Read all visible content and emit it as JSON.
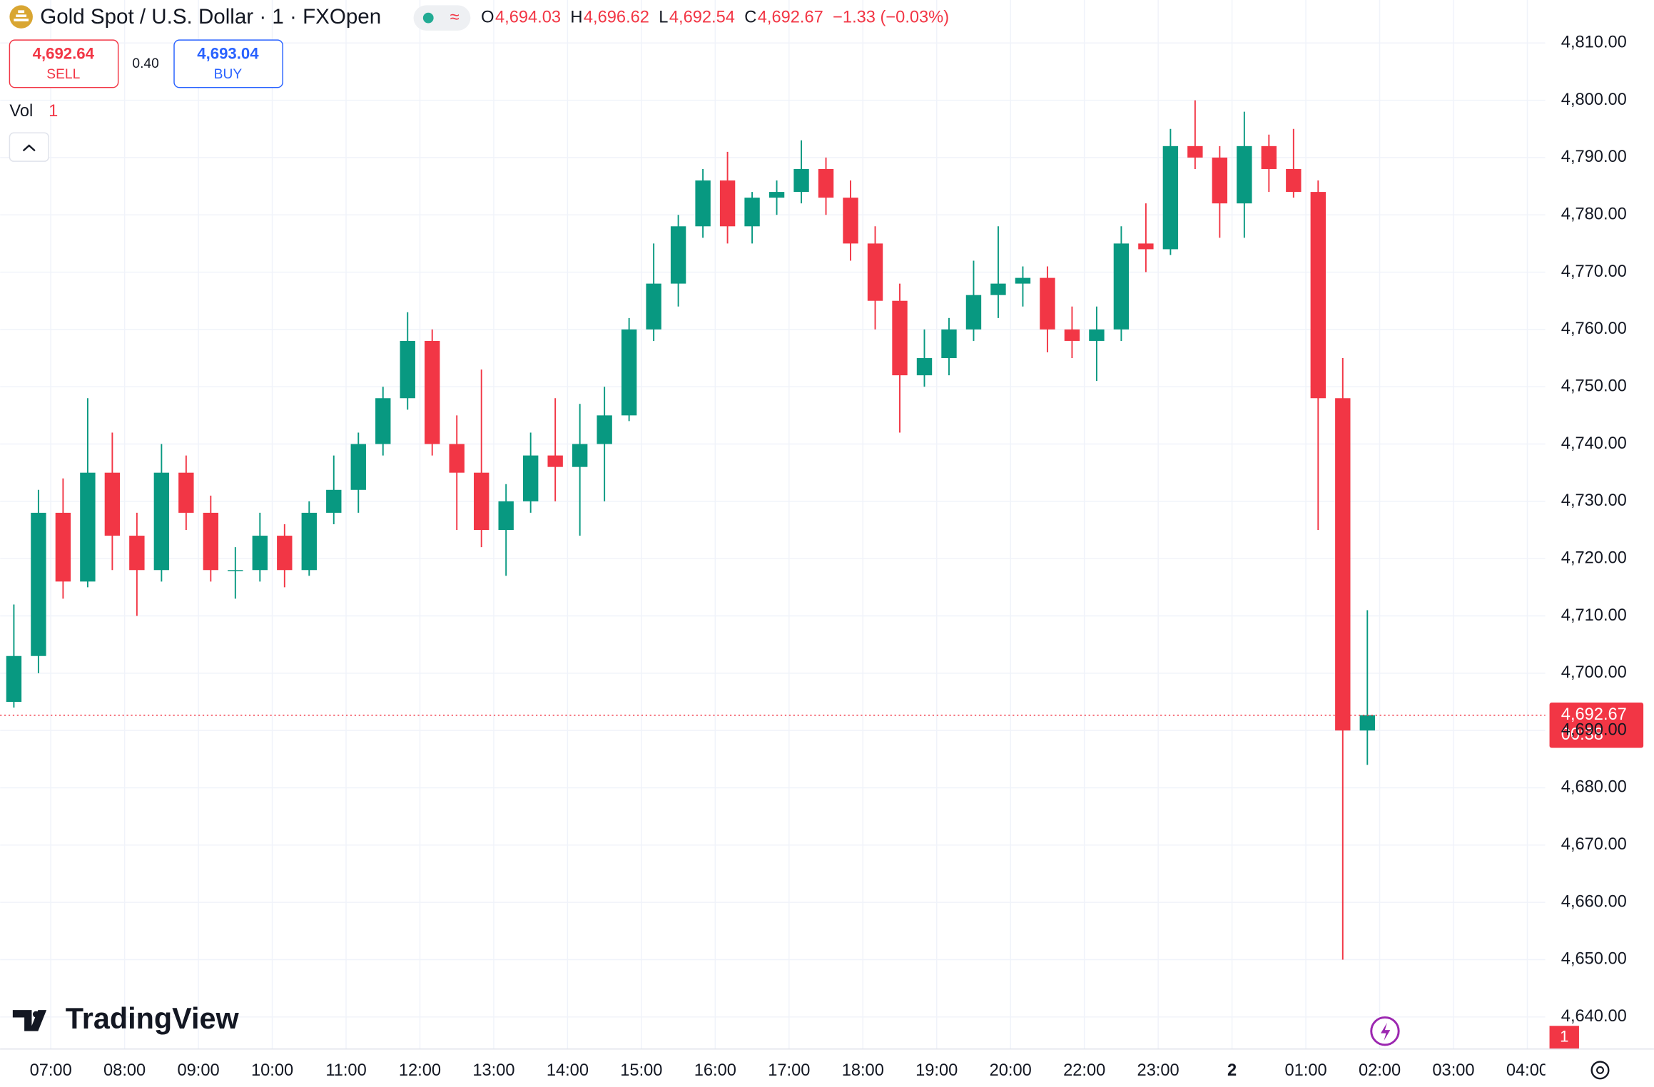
{
  "header": {
    "title": "Gold Spot / U.S. Dollar · 1 · FXOpen",
    "ohlc": [
      {
        "key": "O",
        "value": "4,694.03"
      },
      {
        "key": "H",
        "value": "4,696.62"
      },
      {
        "key": "L",
        "value": "4,692.54"
      },
      {
        "key": "C",
        "value": "4,692.67"
      }
    ],
    "change": "−1.33 (−0.03%)",
    "sell": {
      "price": "4,692.64",
      "label": "SELL"
    },
    "spread": "0.40",
    "buy": {
      "price": "4,693.04",
      "label": "BUY"
    },
    "volume_label": "Vol",
    "volume_value": "1"
  },
  "brand": "TradingView",
  "chart_data": {
    "type": "candlestick",
    "colors": {
      "up": "#089981",
      "down": "#f23645"
    },
    "open": [
      4695,
      4703,
      4728,
      4716,
      4735,
      4724,
      4718,
      4735,
      4728,
      4718,
      4718,
      4724,
      4718,
      4728,
      4732,
      4740,
      4748,
      4758,
      4740,
      4735,
      4725,
      4730,
      4738,
      4736,
      4740,
      4745,
      4760,
      4768,
      4778,
      4786,
      4778,
      4783,
      4784,
      4788,
      4783,
      4775,
      4765,
      4752,
      4755,
      4760,
      4766,
      4768,
      4769,
      4760,
      4758,
      4760,
      4775,
      4774,
      4792,
      4790,
      4782,
      4792,
      4788,
      4784,
      4748,
      4690
    ],
    "high": [
      4712,
      4732,
      4734,
      4748,
      4742,
      4728,
      4740,
      4738,
      4731,
      4722,
      4728,
      4726,
      4730,
      4738,
      4742,
      4750,
      4763,
      4760,
      4745,
      4753,
      4733,
      4742,
      4748,
      4747,
      4750,
      4762,
      4775,
      4780,
      4788,
      4791,
      4784,
      4786,
      4793,
      4790,
      4786,
      4778,
      4768,
      4760,
      4762,
      4772,
      4778,
      4771,
      4771,
      4764,
      4764,
      4778,
      4782,
      4795,
      4800,
      4792,
      4798,
      4794,
      4795,
      4786,
      4755,
      4711
    ],
    "low": [
      4694,
      4700,
      4713,
      4715,
      4718,
      4710,
      4716,
      4725,
      4716,
      4713,
      4716,
      4715,
      4717,
      4726,
      4728,
      4738,
      4746,
      4738,
      4725,
      4722,
      4717,
      4728,
      4730,
      4724,
      4730,
      4744,
      4758,
      4764,
      4776,
      4775,
      4775,
      4780,
      4782,
      4780,
      4772,
      4760,
      4742,
      4750,
      4752,
      4758,
      4762,
      4764,
      4756,
      4755,
      4751,
      4758,
      4770,
      4773,
      4788,
      4776,
      4776,
      4784,
      4783,
      4725,
      4650,
      4684
    ],
    "close": [
      4703,
      4728,
      4716,
      4735,
      4724,
      4718,
      4735,
      4728,
      4718,
      4718,
      4724,
      4718,
      4728,
      4732,
      4740,
      4748,
      4758,
      4740,
      4735,
      4725,
      4730,
      4738,
      4736,
      4740,
      4745,
      4760,
      4768,
      4778,
      4786,
      4778,
      4783,
      4784,
      4788,
      4783,
      4775,
      4765,
      4752,
      4755,
      4760,
      4766,
      4768,
      4769,
      4760,
      4758,
      4760,
      4775,
      4774,
      4792,
      4790,
      4782,
      4792,
      4788,
      4784,
      4748,
      4690,
      4692.67
    ],
    "xlim": [
      -0.06,
      62.73
    ],
    "xticks": [
      {
        "value": 2,
        "label": "07:00"
      },
      {
        "value": 5,
        "label": "08:00"
      },
      {
        "value": 8,
        "label": "09:00"
      },
      {
        "value": 11,
        "label": "10:00"
      },
      {
        "value": 14,
        "label": "11:00"
      },
      {
        "value": 17,
        "label": "12:00"
      },
      {
        "value": 20,
        "label": "13:00"
      },
      {
        "value": 23,
        "label": "14:00"
      },
      {
        "value": 26,
        "label": "15:00"
      },
      {
        "value": 29,
        "label": "16:00"
      },
      {
        "value": 32,
        "label": "17:00"
      },
      {
        "value": 35,
        "label": "18:00"
      },
      {
        "value": 38,
        "label": "19:00"
      },
      {
        "value": 41,
        "label": "20:00"
      },
      {
        "value": 44,
        "label": "22:00"
      },
      {
        "value": 47,
        "label": "23:00"
      },
      {
        "value": 50,
        "label": "2"
      },
      {
        "value": 53,
        "label": "01:00"
      },
      {
        "value": 56,
        "label": "02:00"
      },
      {
        "value": 59,
        "label": "03:00"
      },
      {
        "value": 62,
        "label": "04:00"
      }
    ],
    "ylim": [
      4634.4,
      4817.5
    ],
    "yticks": [
      {
        "value": 4640,
        "label": "4,640.00"
      },
      {
        "value": 4650,
        "label": "4,650.00"
      },
      {
        "value": 4660,
        "label": "4,660.00"
      },
      {
        "value": 4670,
        "label": "4,670.00"
      },
      {
        "value": 4680,
        "label": "4,680.00"
      },
      {
        "value": 4690,
        "label": "4,690.00"
      },
      {
        "value": 4700,
        "label": "4,700.00"
      },
      {
        "value": 4710,
        "label": "4,710.00"
      },
      {
        "value": 4720,
        "label": "4,720.00"
      },
      {
        "value": 4730,
        "label": "4,730.00"
      },
      {
        "value": 4740,
        "label": "4,740.00"
      },
      {
        "value": 4750,
        "label": "4,750.00"
      },
      {
        "value": 4760,
        "label": "4,760.00"
      },
      {
        "value": 4770,
        "label": "4,770.00"
      },
      {
        "value": 4780,
        "label": "4,780.00"
      },
      {
        "value": 4790,
        "label": "4,790.00"
      },
      {
        "value": 4800,
        "label": "4,800.00"
      },
      {
        "value": 4810,
        "label": "4,810.00"
      }
    ],
    "grid": true,
    "last_price": {
      "value": 4692.67,
      "label": "4,692.67"
    },
    "countdown": "00:38",
    "pane_badge": "1"
  }
}
